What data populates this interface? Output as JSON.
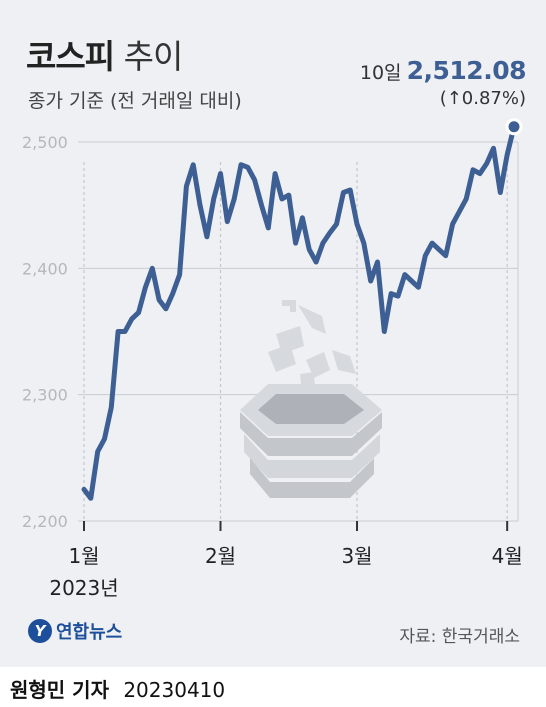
{
  "header": {
    "title_main": "코스피",
    "title_sub": "추이",
    "subtitle": "종가 기준 (전 거래일 대비)"
  },
  "latest": {
    "day": "10일",
    "value": "2,512.08",
    "change": "(↑0.87%)"
  },
  "footer": {
    "logo_text": "연합뉴스",
    "source": "자료: 한국거래소",
    "reporter": "원형민 기자",
    "date": "20230410"
  },
  "colors": {
    "line": "#3e5f94",
    "background": "#eef0f3",
    "grid": "#c8ccd2"
  },
  "illustration": "pottery-kiln-steam-icon",
  "chart_data": {
    "type": "line",
    "title": "코스피 추이",
    "subtitle": "종가 기준 (전 거래일 대비)",
    "xlabel": "",
    "ylabel": "",
    "ylim": [
      2200,
      2530
    ],
    "yticks": [
      2200,
      2300,
      2400,
      2500
    ],
    "ytick_labels": [
      "2,200",
      "2,300",
      "2,400",
      "2,500"
    ],
    "xticks": [
      {
        "index": 0,
        "label": "1월",
        "sublabel": "2023년"
      },
      {
        "index": 20,
        "label": "2월"
      },
      {
        "index": 40,
        "label": "3월"
      },
      {
        "index": 62,
        "label": "4월"
      }
    ],
    "grid": true,
    "values": [
      2225,
      2218,
      2255,
      2265,
      2290,
      2350,
      2350,
      2360,
      2365,
      2385,
      2400,
      2375,
      2368,
      2380,
      2395,
      2465,
      2482,
      2450,
      2425,
      2455,
      2475,
      2437,
      2455,
      2482,
      2480,
      2470,
      2450,
      2432,
      2475,
      2455,
      2458,
      2420,
      2440,
      2415,
      2405,
      2420,
      2428,
      2435,
      2460,
      2462,
      2435,
      2420,
      2390,
      2405,
      2350,
      2380,
      2378,
      2395,
      2390,
      2385,
      2410,
      2420,
      2415,
      2410,
      2435,
      2445,
      2455,
      2478,
      2475,
      2483,
      2495,
      2460,
      2490,
      2512.08
    ],
    "last_point": {
      "label": "10일",
      "value": 2512.08,
      "change_pct": 0.87
    }
  }
}
